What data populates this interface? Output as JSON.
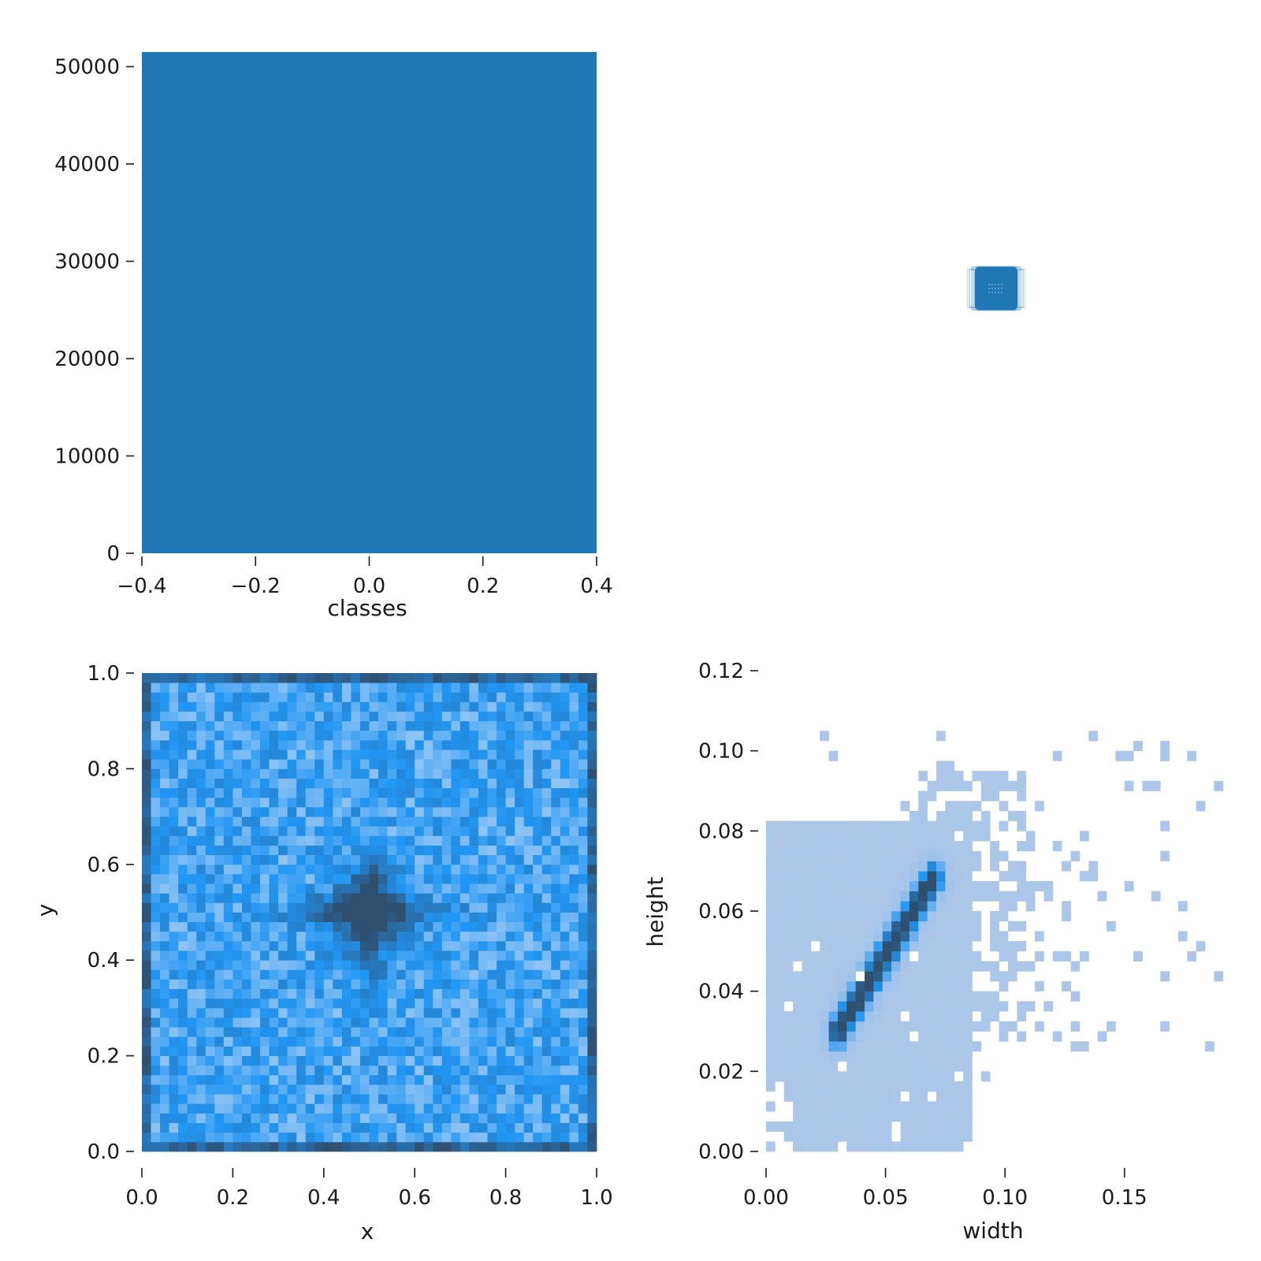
{
  "colors": {
    "bar": "#1f77b4",
    "label_hist_light": "#aec7e8",
    "label_hist_mid": "#2196f3",
    "label_hist_dark": "#2f4f6f",
    "box_fill": "#1f77b4"
  },
  "chart_data": [
    {
      "type": "bar",
      "name": "classes-histogram",
      "xlabel": "classes",
      "ylabel": "",
      "categories": [
        "0"
      ],
      "bar_center": 0.0,
      "bar_width": 0.8,
      "values": [
        51500
      ],
      "xlim": [
        -0.4,
        0.4
      ],
      "ylim": [
        0,
        51500
      ],
      "xticks": [
        -0.4,
        -0.2,
        0.0,
        0.2,
        0.4
      ],
      "xtick_labels": [
        "−0.4",
        "−0.2",
        "0.0",
        "0.2",
        "0.4"
      ],
      "yticks": [
        0,
        10000,
        20000,
        30000,
        40000,
        50000
      ],
      "ytick_labels": [
        "0",
        "10000",
        "20000",
        "30000",
        "40000",
        "50000"
      ],
      "grid": false
    },
    {
      "type": "scatter",
      "name": "box-overlay",
      "xlabel": "",
      "ylabel": "",
      "description_values": {
        "box_width": 0.05,
        "box_height": 0.05
      },
      "grid": false
    },
    {
      "type": "heatmap",
      "name": "xy-density",
      "xlabel": "x",
      "ylabel": "y",
      "xlim": [
        0.0,
        1.0
      ],
      "ylim": [
        0.0,
        1.0
      ],
      "bins": [
        50,
        50
      ],
      "xticks": [
        0.0,
        0.2,
        0.4,
        0.6,
        0.8,
        1.0
      ],
      "xtick_labels": [
        "0.0",
        "0.2",
        "0.4",
        "0.6",
        "0.8",
        "1.0"
      ],
      "yticks": [
        0.0,
        0.2,
        0.4,
        0.6,
        0.8,
        1.0
      ],
      "ytick_labels": [
        "0.0",
        "0.2",
        "0.4",
        "0.6",
        "0.8",
        "1.0"
      ],
      "peak": {
        "x": 0.5,
        "y": 0.5
      },
      "grid": false
    },
    {
      "type": "heatmap",
      "name": "width-height-density",
      "xlabel": "width",
      "ylabel": "height",
      "xlim": [
        0.0,
        0.19
      ],
      "ylim": [
        0.0,
        0.12
      ],
      "bins": [
        50,
        50
      ],
      "xticks": [
        0.0,
        0.05,
        0.1,
        0.15
      ],
      "xtick_labels": [
        "0.00",
        "0.05",
        "0.10",
        "0.15"
      ],
      "yticks": [
        0.0,
        0.02,
        0.04,
        0.06,
        0.08,
        0.1,
        0.12
      ],
      "ytick_labels": [
        "0.00",
        "0.02",
        "0.04",
        "0.06",
        "0.08",
        "0.10",
        "0.12"
      ],
      "ridge": {
        "from": [
          0.03,
          0.03
        ],
        "to": [
          0.07,
          0.068
        ]
      },
      "grid": false
    }
  ]
}
